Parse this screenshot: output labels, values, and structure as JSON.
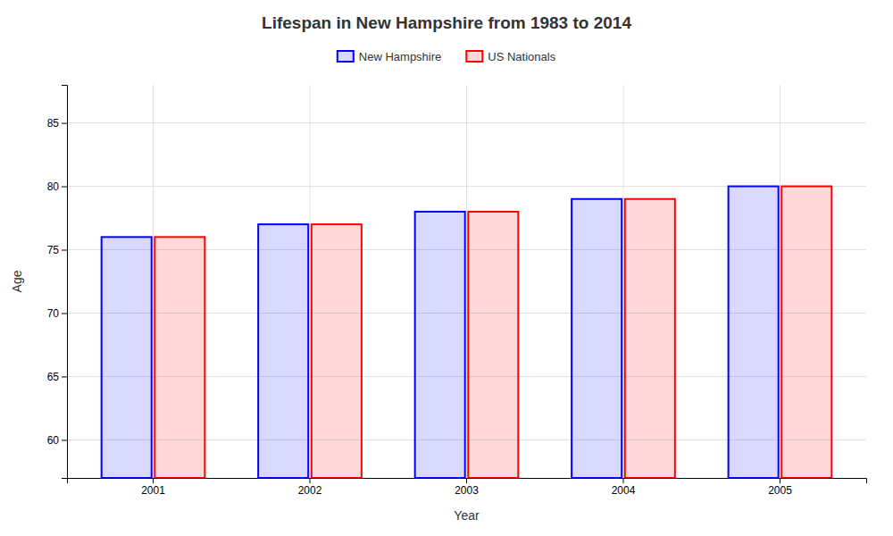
{
  "chart_data": {
    "type": "bar",
    "title": "Lifespan in New Hampshire from 1983 to 2014",
    "xlabel": "Year",
    "ylabel": "Age",
    "categories": [
      "2001",
      "2002",
      "2003",
      "2004",
      "2005"
    ],
    "series": [
      {
        "name": "New Hampshire",
        "color": "#0000ff",
        "values": [
          76,
          77,
          78,
          79,
          80
        ]
      },
      {
        "name": "US Nationals",
        "color": "#ff0000",
        "values": [
          76,
          77,
          78,
          79,
          80
        ]
      }
    ],
    "ylim": [
      57,
      88
    ],
    "yticks": [
      60,
      65,
      70,
      75,
      80,
      85
    ],
    "grid": true,
    "legend": "top"
  }
}
